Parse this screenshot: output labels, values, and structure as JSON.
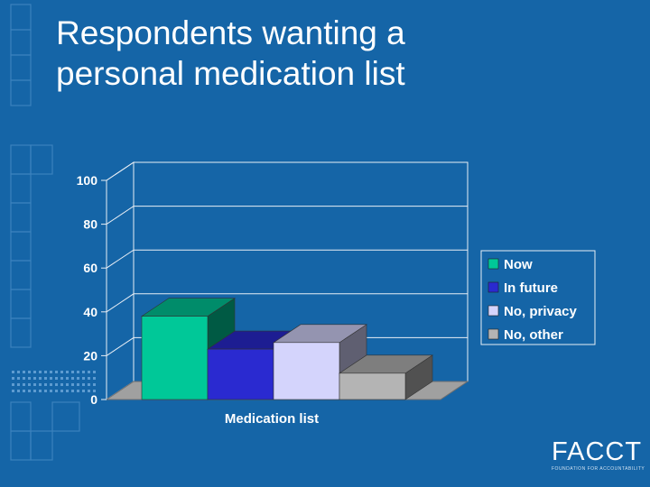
{
  "slide": {
    "title_line1": "Respondents wanting a",
    "title_line2": "personal medication list"
  },
  "chart_data": {
    "type": "bar",
    "categories": [
      "Medication list"
    ],
    "series": [
      {
        "name": "Now",
        "values": [
          38
        ],
        "color": "#00c898"
      },
      {
        "name": "In future",
        "values": [
          23
        ],
        "color": "#2a2ad0"
      },
      {
        "name": "No, privacy",
        "values": [
          26
        ],
        "color": "#d4d4fc"
      },
      {
        "name": "No, other",
        "values": [
          12
        ],
        "color": "#b4b4b4"
      }
    ],
    "title": "",
    "xlabel": "Medication list",
    "ylabel": "",
    "ylim": [
      0,
      100
    ],
    "yticks": [
      "0",
      "20",
      "40",
      "60",
      "80",
      "100"
    ],
    "grid": true,
    "legend": "right",
    "three_d": true
  },
  "logo": {
    "name": "FACCT",
    "tagline": "FOUNDATION FOR ACCOUNTABILITY"
  },
  "colors": {
    "background": "#1565a7",
    "wall": "#1565a7",
    "floor": "#a0a0a0"
  }
}
